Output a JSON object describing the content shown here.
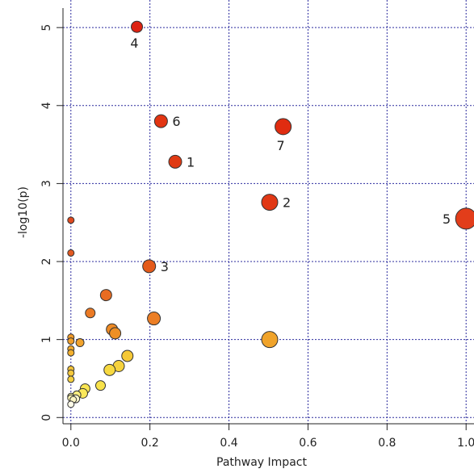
{
  "chart_data": {
    "type": "scatter",
    "title": "",
    "xlabel": "Pathway Impact",
    "ylabel": "-log10(p)",
    "xlim": [
      -0.02,
      1.02
    ],
    "ylim": [
      -0.08,
      5.25
    ],
    "grid": true,
    "x_ticks": [
      0.0,
      0.2,
      0.4,
      0.6,
      0.8,
      1.0
    ],
    "x_tick_labels": [
      "0.0",
      "0.2",
      "0.4",
      "0.6",
      "0.8",
      "1.0"
    ],
    "y_ticks": [
      0,
      1,
      2,
      3,
      4,
      5
    ],
    "y_tick_labels": [
      "0",
      "1",
      "2",
      "3",
      "4",
      "5"
    ],
    "points": [
      {
        "x": 0.167,
        "y": 5.01,
        "r": 7,
        "color": "#dd2211",
        "label": "4",
        "label_pos": "below"
      },
      {
        "x": 0.228,
        "y": 3.8,
        "r": 8,
        "color": "#e23512",
        "label": "6",
        "label_pos": "right"
      },
      {
        "x": 0.537,
        "y": 3.73,
        "r": 10,
        "color": "#e02c10",
        "label": "7",
        "label_pos": "below"
      },
      {
        "x": 0.264,
        "y": 3.28,
        "r": 8,
        "color": "#e03a13",
        "label": "1",
        "label_pos": "right"
      },
      {
        "x": 0.503,
        "y": 2.76,
        "r": 10,
        "color": "#e13815",
        "label": "2",
        "label_pos": "right"
      },
      {
        "x": 1.0,
        "y": 2.55,
        "r": 13,
        "color": "#e23d1a",
        "label": "5",
        "label_pos": "left"
      },
      {
        "x": 0.198,
        "y": 1.94,
        "r": 8,
        "color": "#e45a1a",
        "label": "3",
        "label_pos": "right"
      },
      {
        "x": 0.0,
        "y": 2.53,
        "r": 4,
        "color": "#e04a1f",
        "label": ""
      },
      {
        "x": 0.0,
        "y": 2.11,
        "r": 4,
        "color": "#e25a22",
        "label": ""
      },
      {
        "x": 0.089,
        "y": 1.57,
        "r": 7,
        "color": "#e86c22",
        "label": ""
      },
      {
        "x": 0.049,
        "y": 1.34,
        "r": 6,
        "color": "#eb7a24",
        "label": ""
      },
      {
        "x": 0.21,
        "y": 1.27,
        "r": 8,
        "color": "#ec7e25",
        "label": ""
      },
      {
        "x": 0.104,
        "y": 1.13,
        "r": 7,
        "color": "#ee8a24",
        "label": ""
      },
      {
        "x": 0.112,
        "y": 1.08,
        "r": 7,
        "color": "#ef8f25",
        "label": ""
      },
      {
        "x": 0.503,
        "y": 1.0,
        "r": 10,
        "color": "#f0a32a",
        "label": ""
      },
      {
        "x": 0.0,
        "y": 1.03,
        "r": 4,
        "color": "#f09a2a",
        "label": ""
      },
      {
        "x": 0.0,
        "y": 0.98,
        "r": 4,
        "color": "#f1a02b",
        "label": ""
      },
      {
        "x": 0.023,
        "y": 0.96,
        "r": 5,
        "color": "#f1a32c",
        "label": ""
      },
      {
        "x": 0.0,
        "y": 0.88,
        "r": 4,
        "color": "#f2aa2d",
        "label": ""
      },
      {
        "x": 0.0,
        "y": 0.83,
        "r": 4,
        "color": "#f3b02e",
        "label": ""
      },
      {
        "x": 0.143,
        "y": 0.79,
        "r": 7,
        "color": "#f5c836",
        "label": ""
      },
      {
        "x": 0.121,
        "y": 0.66,
        "r": 7,
        "color": "#f6d23c",
        "label": ""
      },
      {
        "x": 0.098,
        "y": 0.61,
        "r": 7,
        "color": "#f7d940",
        "label": ""
      },
      {
        "x": 0.0,
        "y": 0.62,
        "r": 4,
        "color": "#f3c23a",
        "label": ""
      },
      {
        "x": 0.0,
        "y": 0.57,
        "r": 4,
        "color": "#f4c83c",
        "label": ""
      },
      {
        "x": 0.0,
        "y": 0.49,
        "r": 4,
        "color": "#f5d040",
        "label": ""
      },
      {
        "x": 0.075,
        "y": 0.41,
        "r": 6,
        "color": "#f8e24a",
        "label": ""
      },
      {
        "x": 0.036,
        "y": 0.37,
        "r": 6,
        "color": "#f9e552",
        "label": ""
      },
      {
        "x": 0.03,
        "y": 0.31,
        "r": 6,
        "color": "#fae85a",
        "label": ""
      },
      {
        "x": 0.015,
        "y": 0.29,
        "r": 5,
        "color": "#fbee80",
        "label": ""
      },
      {
        "x": 0.0,
        "y": 0.27,
        "r": 4,
        "color": "#fbf2a0",
        "label": ""
      },
      {
        "x": 0.0,
        "y": 0.25,
        "r": 4,
        "color": "#fcf4b0",
        "label": ""
      },
      {
        "x": 0.006,
        "y": 0.23,
        "r": 4,
        "color": "#fdf6c4",
        "label": ""
      },
      {
        "x": 0.012,
        "y": 0.24,
        "r": 5,
        "color": "#fdf7d0",
        "label": ""
      },
      {
        "x": 0.0,
        "y": 0.17,
        "r": 4,
        "color": "#fefbe8",
        "label": ""
      }
    ]
  }
}
